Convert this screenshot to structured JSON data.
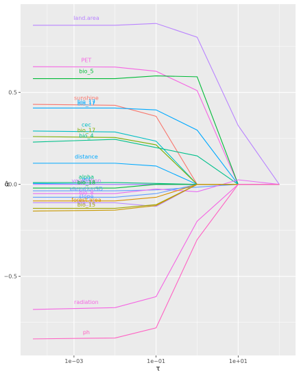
{
  "chart_data": {
    "type": "line",
    "xlabel": "τ",
    "ylabel": "α̂",
    "x_scale": "log",
    "x": [
      0.0001,
      0.01,
      0.1,
      1,
      10,
      100
    ],
    "x_ticks": [
      {
        "value": 0.001,
        "label": "1e−03"
      },
      {
        "value": 0.1,
        "label": "1e−01"
      },
      {
        "value": 10,
        "label": "1e+01"
      }
    ],
    "y_ticks": [
      {
        "value": 0.5,
        "label": "0.5"
      },
      {
        "value": 0.0,
        "label": "0.0"
      },
      {
        "value": -0.5,
        "label": "−0.5"
      }
    ],
    "xlim": [
      5e-05,
      250
    ],
    "ylim": [
      -0.93,
      0.98
    ],
    "grid": true,
    "legend": "none",
    "series": [
      {
        "name": "land.area",
        "color": "#B983FF",
        "values": [
          0.865,
          0.865,
          0.875,
          0.8,
          0.32,
          0.0
        ]
      },
      {
        "name": "PET",
        "color": "#F564E3",
        "values": [
          0.64,
          0.638,
          0.615,
          0.51,
          0.0,
          0.0
        ]
      },
      {
        "name": "bio_5",
        "color": "#00BA38",
        "values": [
          0.575,
          0.575,
          0.59,
          0.585,
          0.0,
          0.0
        ]
      },
      {
        "name": "sunshine",
        "color": "#F8766D",
        "values": [
          0.435,
          0.43,
          0.37,
          0.0,
          0.0,
          0.0
        ]
      },
      {
        "name": "bio_17",
        "color": "#00A9FF",
        "values": [
          0.415,
          0.415,
          0.405,
          0.295,
          0.0,
          0.0
        ]
      },
      {
        "name": "cec",
        "color": "#00BFC4",
        "values": [
          0.29,
          0.285,
          0.235,
          0.0,
          0.0,
          0.0
        ]
      },
      {
        "name": "bio_17",
        "color": "#7CAE00",
        "values": [
          0.26,
          0.255,
          0.215,
          0.0,
          0.0,
          0.0
        ]
      },
      {
        "name": "bio_4",
        "color": "#00C08B",
        "values": [
          0.23,
          0.245,
          0.2,
          0.155,
          0.0,
          0.0
        ]
      },
      {
        "name": "distance",
        "color": "#00A9FF",
        "values": [
          0.115,
          0.115,
          0.1,
          0.0,
          0.0,
          0.0
        ]
      },
      {
        "name": "alpha",
        "color": "#00BF7D",
        "values": [
          0.01,
          0.01,
          0.005,
          0.0,
          0.0,
          0.0
        ]
      },
      {
        "name": "ppt",
        "color": "#00B0F6",
        "values": [
          0.005,
          0.0,
          0.0,
          0.0,
          0.0,
          0.0
        ]
      },
      {
        "name": "vegetation",
        "color": "#C77CFF",
        "values": [
          0.0,
          0.0,
          0.0,
          0.0,
          0.0,
          0.0
        ]
      },
      {
        "name": "bio_18",
        "color": "#00BA38",
        "values": [
          -0.02,
          -0.02,
          0.0,
          0.0,
          0.0,
          0.0
        ]
      },
      {
        "name": "elevationSD",
        "color": "#619CFF",
        "values": [
          -0.035,
          -0.035,
          -0.03,
          -0.015,
          0.0,
          0.0
        ]
      },
      {
        "name": "bio_8",
        "color": "#E76BF3",
        "values": [
          -0.05,
          -0.05,
          -0.025,
          -0.04,
          0.025,
          0.0
        ]
      },
      {
        "name": "slope",
        "color": "#619CFF",
        "values": [
          -0.07,
          -0.07,
          -0.05,
          0.0,
          0.0,
          0.0
        ]
      },
      {
        "name": "forest.area",
        "color": "#D89000",
        "values": [
          -0.09,
          -0.09,
          -0.07,
          0.0,
          0.0,
          0.0
        ]
      },
      {
        "name": "bio_13",
        "color": "#B983FF",
        "values": [
          -0.1,
          -0.1,
          -0.12,
          0.0,
          0.0,
          0.0
        ]
      },
      {
        "name": "bio_15",
        "color": "#A3A500",
        "values": [
          -0.13,
          -0.13,
          -0.11,
          0.0,
          0.0,
          0.0
        ]
      },
      {
        "name": "clay",
        "color": "#C99800",
        "values": [
          -0.145,
          -0.14,
          -0.115,
          0.0,
          0.0,
          0.0
        ]
      },
      {
        "name": "radiation",
        "color": "#F564E3",
        "values": [
          -0.68,
          -0.67,
          -0.61,
          -0.2,
          0.0,
          0.0
        ]
      },
      {
        "name": "ph",
        "color": "#FF61C3",
        "values": [
          -0.84,
          -0.835,
          -0.78,
          -0.3,
          0.0,
          0.0
        ]
      }
    ],
    "labels": [
      {
        "text": "land.area",
        "color": "#B983FF",
        "x": 0.002,
        "y": 0.895
      },
      {
        "text": "PET",
        "color": "#F564E3",
        "x": 0.002,
        "y": 0.665
      },
      {
        "text": "bio_5",
        "color": "#00BA38",
        "x": 0.002,
        "y": 0.605
      },
      {
        "text": "sunshine",
        "color": "#F8766D",
        "x": 0.002,
        "y": 0.46
      },
      {
        "text": "bio_17",
        "color": "#00A9FF",
        "x": 0.002,
        "y": 0.44
      },
      {
        "text": "bio_17",
        "color": "#00A9FF",
        "x": 0.002,
        "y": 0.43
      },
      {
        "text": "cec",
        "color": "#00BFC4",
        "x": 0.002,
        "y": 0.315
      },
      {
        "text": "bio_17",
        "color": "#7CAE00",
        "x": 0.002,
        "y": 0.285
      },
      {
        "text": "bio_4",
        "color": "#00C08B",
        "x": 0.002,
        "y": 0.255
      },
      {
        "text": "distance",
        "color": "#00A9FF",
        "x": 0.002,
        "y": 0.14
      },
      {
        "text": "alpha",
        "color": "#00BF7D",
        "x": 0.002,
        "y": 0.03
      },
      {
        "text": "ppt",
        "color": "#00B0F6",
        "x": 0.002,
        "y": 0.02
      },
      {
        "text": "vegetation",
        "color": "#C77CFF",
        "x": 0.002,
        "y": 0.01
      },
      {
        "text": "bio_18",
        "color": "#00BA38",
        "x": 0.002,
        "y": 0.0
      },
      {
        "text": "elevationSD",
        "color": "#619CFF",
        "x": 0.002,
        "y": -0.035
      },
      {
        "text": "bio_8",
        "color": "#E76BF3",
        "x": 0.002,
        "y": -0.055
      },
      {
        "text": "slope",
        "color": "#619CFF",
        "x": 0.002,
        "y": -0.075
      },
      {
        "text": "forest.area",
        "color": "#D89000",
        "x": 0.002,
        "y": -0.095
      },
      {
        "text": "bio_13",
        "color": "#B983FF",
        "x": 0.002,
        "y": -0.11
      },
      {
        "text": "bio_15",
        "color": "#A3A500",
        "x": 0.002,
        "y": -0.12
      },
      {
        "text": "radiation",
        "color": "#F564E3",
        "x": 0.002,
        "y": -0.65
      },
      {
        "text": "ph",
        "color": "#FF61C3",
        "x": 0.002,
        "y": -0.815
      }
    ]
  }
}
